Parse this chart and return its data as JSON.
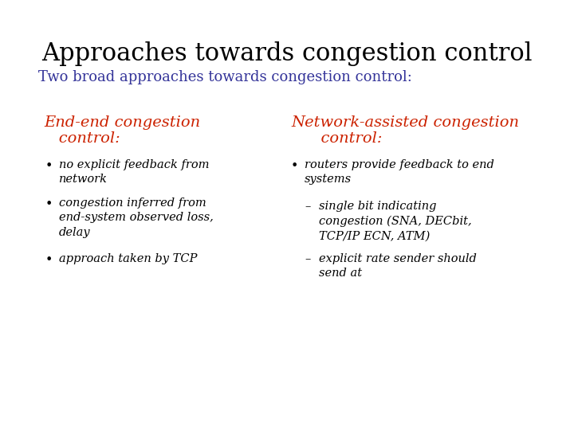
{
  "title": "Approaches towards congestion control",
  "subtitle": "Two broad approaches towards congestion control:",
  "title_color": "#000000",
  "subtitle_color": "#333399",
  "heading_color": "#cc2200",
  "body_color": "#000000",
  "background_color": "#ffffff",
  "left_heading_line1": "End-end congestion",
  "left_heading_line2": "   control:",
  "left_bullets": [
    "no explicit feedback from\nnetwork",
    "congestion inferred from\nend-system observed loss,\ndelay",
    "approach taken by TCP"
  ],
  "right_heading_line1": "Network-assisted congestion",
  "right_heading_line2": "      control:",
  "right_bullet": "routers provide feedback to end\nsystems",
  "right_sub_bullets": [
    "single bit indicating\ncongestion (SNA, DECbit,\nTCP/IP ECN, ATM)",
    "explicit rate sender should\nsend at"
  ],
  "title_fontsize": 22,
  "subtitle_fontsize": 13,
  "heading_fontsize": 14,
  "body_fontsize": 10.5
}
